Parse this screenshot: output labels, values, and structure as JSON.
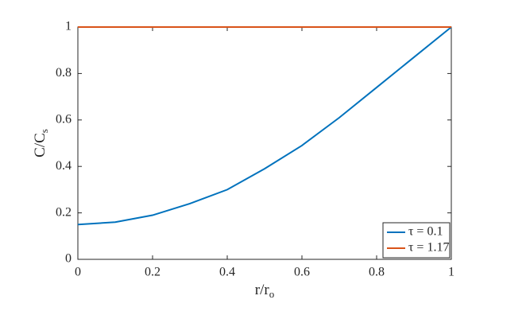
{
  "chart_data": {
    "type": "line",
    "xlabel": {
      "text": "r/r",
      "sub": "o"
    },
    "ylabel": {
      "text": "C/C",
      "sub": "s"
    },
    "x": [
      0,
      0.1,
      0.2,
      0.3,
      0.4,
      0.5,
      0.6,
      0.7,
      0.8,
      0.9,
      1
    ],
    "series": [
      {
        "name": "τ = 0.1",
        "color": "#0072bd",
        "values": [
          0.15,
          0.16,
          0.19,
          0.24,
          0.3,
          0.39,
          0.49,
          0.61,
          0.74,
          0.87,
          1.0
        ]
      },
      {
        "name": "τ = 1.17",
        "color": "#d95319",
        "values": [
          1,
          1,
          1,
          1,
          1,
          1,
          1,
          1,
          1,
          1,
          1
        ]
      }
    ],
    "xlim": [
      0,
      1
    ],
    "xticks": [
      0,
      0.2,
      0.4,
      0.6,
      0.8,
      1
    ],
    "ylim": [
      0,
      1
    ],
    "yticks": [
      0,
      0.2,
      0.4,
      0.6,
      0.8,
      1
    ],
    "grid": false,
    "legend": "lower right"
  }
}
